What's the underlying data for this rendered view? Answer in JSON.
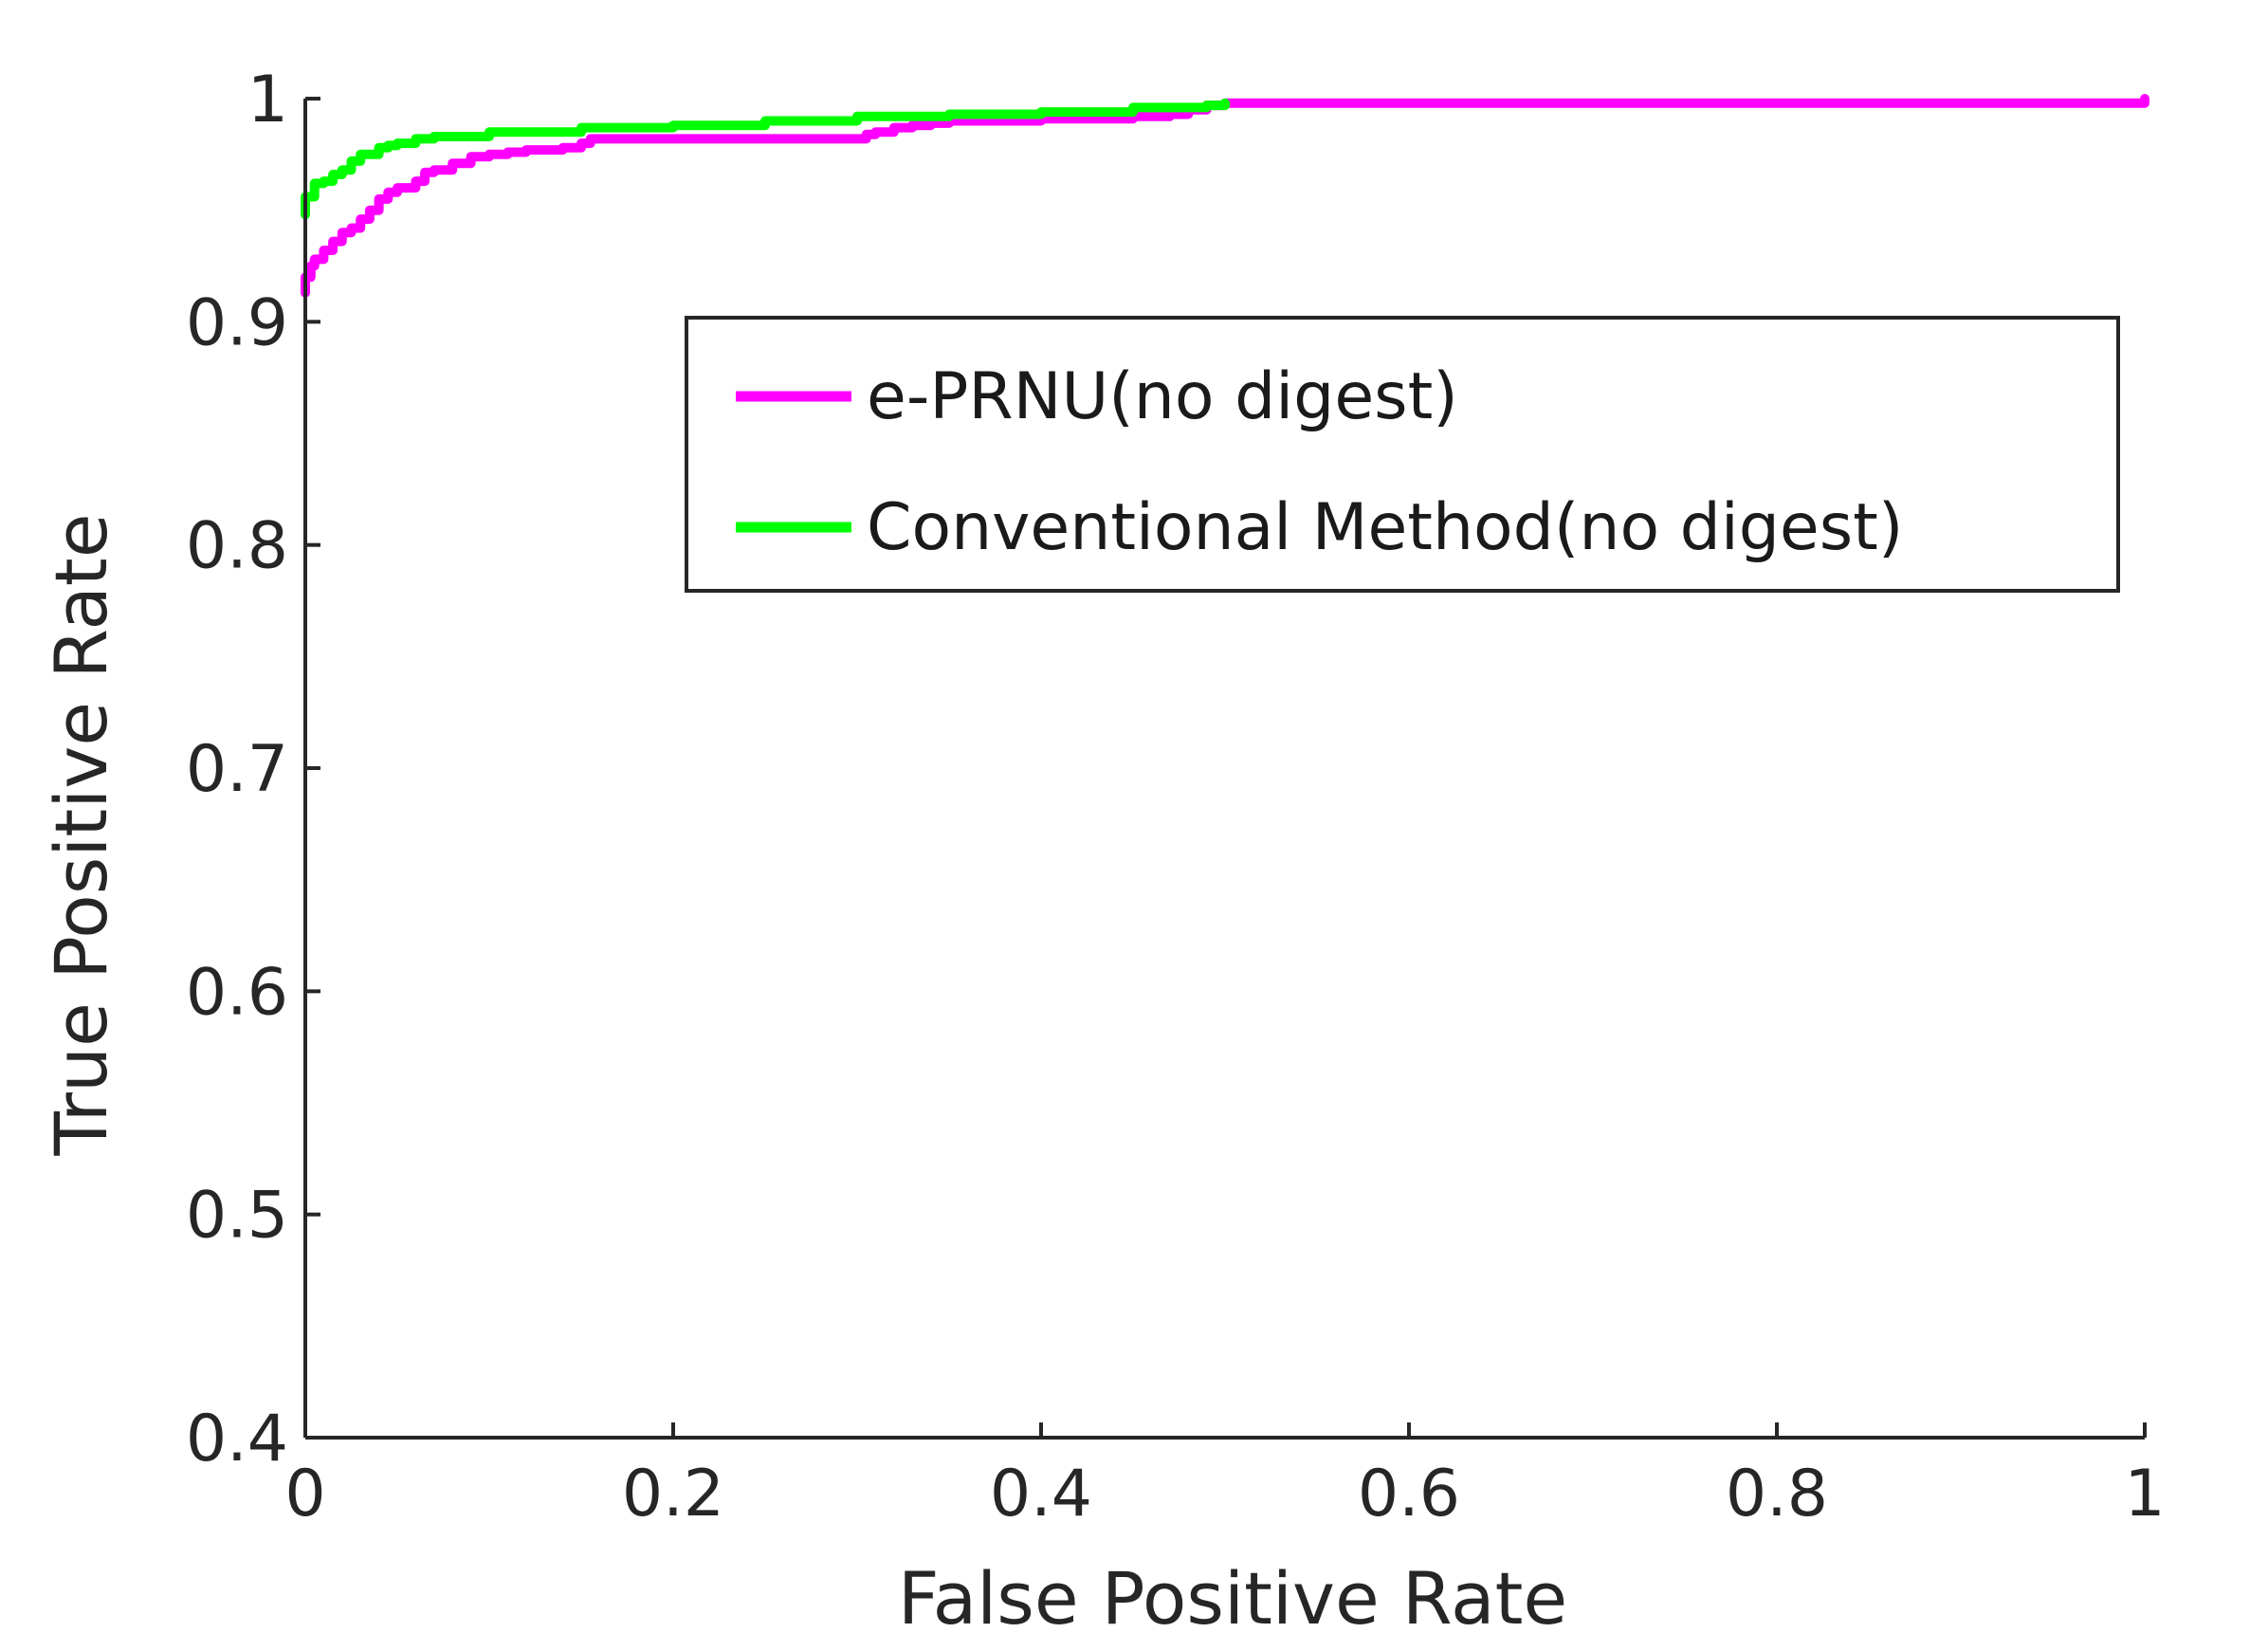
{
  "chart_data": {
    "type": "line",
    "xlabel": "False Positive Rate",
    "ylabel": "True Positive Rate",
    "xlim": [
      0,
      1
    ],
    "ylim": [
      0.4,
      1
    ],
    "xticks": [
      0,
      0.2,
      0.4,
      0.6,
      0.8,
      1
    ],
    "xtick_labels": [
      "0",
      "0.2",
      "0.4",
      "0.6",
      "0.8",
      "1"
    ],
    "yticks": [
      0.4,
      0.5,
      0.6,
      0.7,
      0.8,
      0.9,
      1
    ],
    "ytick_labels": [
      "0.4",
      "0.5",
      "0.6",
      "0.7",
      "0.8",
      "0.9",
      "1"
    ],
    "grid": false,
    "legend_position": "top-right",
    "series": [
      {
        "name": "e-PRNU(no digest)",
        "color": "#ff00ff",
        "x": [
          0,
          0,
          0.003,
          0.005,
          0.01,
          0.015,
          0.02,
          0.025,
          0.03,
          0.035,
          0.04,
          0.045,
          0.05,
          0.06,
          0.065,
          0.07,
          0.08,
          0.09,
          0.1,
          0.11,
          0.12,
          0.13,
          0.14,
          0.15,
          0.155,
          0.2,
          0.25,
          0.3,
          0.305,
          0.31,
          0.32,
          0.33,
          0.34,
          0.35,
          0.4,
          0.45,
          0.47,
          0.48,
          0.49,
          0.5,
          0.6,
          0.7,
          0.8,
          0.9,
          0.99,
          1
        ],
        "y": [
          0.913,
          0.92,
          0.925,
          0.928,
          0.932,
          0.936,
          0.94,
          0.942,
          0.946,
          0.95,
          0.955,
          0.958,
          0.96,
          0.963,
          0.967,
          0.968,
          0.971,
          0.974,
          0.975,
          0.976,
          0.977,
          0.977,
          0.978,
          0.98,
          0.982,
          0.982,
          0.982,
          0.982,
          0.984,
          0.985,
          0.987,
          0.988,
          0.989,
          0.99,
          0.991,
          0.992,
          0.993,
          0.995,
          0.997,
          0.998,
          0.998,
          0.998,
          0.998,
          0.998,
          0.998,
          1.0
        ]
      },
      {
        "name": "Conventional Method(no digest)",
        "color": "#00ff00",
        "x": [
          0,
          0,
          0.005,
          0.01,
          0.015,
          0.02,
          0.025,
          0.03,
          0.035,
          0.04,
          0.045,
          0.05,
          0.06,
          0.07,
          0.1,
          0.12,
          0.15,
          0.2,
          0.25,
          0.3,
          0.35,
          0.4,
          0.45,
          0.49,
          0.5
        ],
        "y": [
          0.948,
          0.956,
          0.962,
          0.963,
          0.966,
          0.968,
          0.972,
          0.975,
          0.975,
          0.978,
          0.979,
          0.98,
          0.982,
          0.983,
          0.985,
          0.985,
          0.987,
          0.988,
          0.99,
          0.992,
          0.993,
          0.994,
          0.996,
          0.997,
          0.998
        ]
      }
    ]
  }
}
